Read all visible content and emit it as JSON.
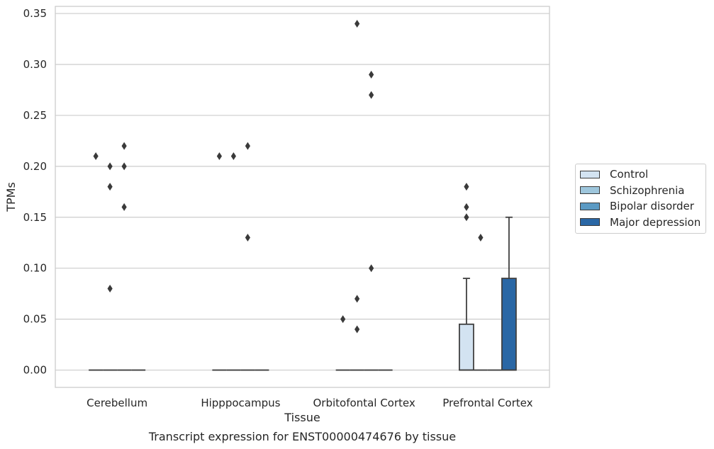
{
  "chart_data": {
    "type": "box",
    "caption": "Transcript expression for ENST00000474676 by tissue",
    "xlabel": "Tissue",
    "ylabel": "TPMs",
    "ylim": [
      -0.017,
      0.357
    ],
    "yticks": [
      "0.00",
      "0.05",
      "0.10",
      "0.15",
      "0.20",
      "0.25",
      "0.30",
      "0.35"
    ],
    "categories": [
      "Cerebellum",
      "Hipppocampus",
      "Orbitofontal Cortex",
      "Prefrontal Cortex"
    ],
    "grid": "horizontal",
    "legend_position": "outside-right",
    "series": [
      {
        "name": "Control",
        "color": "#d3e3f1",
        "boxes": [
          {
            "q1": 0,
            "median": 0,
            "q3": 0,
            "whisker_low": 0,
            "whisker_high": 0,
            "outliers": [
              0.21
            ]
          },
          {
            "q1": 0,
            "median": 0,
            "q3": 0,
            "whisker_low": 0,
            "whisker_high": 0,
            "outliers": [
              0.21
            ]
          },
          {
            "q1": 0,
            "median": 0,
            "q3": 0,
            "whisker_low": 0,
            "whisker_high": 0,
            "outliers": [
              0.05
            ]
          },
          {
            "q1": 0,
            "median": 0,
            "q3": 0.045,
            "whisker_low": 0,
            "whisker_high": 0.09,
            "outliers": [
              0.18,
              0.16,
              0.15
            ]
          }
        ]
      },
      {
        "name": "Schizophrenia",
        "color": "#9ec6dc",
        "boxes": [
          {
            "q1": 0,
            "median": 0,
            "q3": 0,
            "whisker_low": 0,
            "whisker_high": 0,
            "outliers": [
              0.2,
              0.18,
              0.08
            ]
          },
          {
            "q1": 0,
            "median": 0,
            "q3": 0,
            "whisker_low": 0,
            "whisker_high": 0,
            "outliers": [
              0.21
            ]
          },
          {
            "q1": 0,
            "median": 0,
            "q3": 0,
            "whisker_low": 0,
            "whisker_high": 0,
            "outliers": [
              0.34,
              0.07,
              0.04
            ]
          },
          {
            "q1": 0,
            "median": 0,
            "q3": 0,
            "whisker_low": 0,
            "whisker_high": 0,
            "outliers": [
              0.13
            ]
          }
        ]
      },
      {
        "name": "Bipolar disorder",
        "color": "#5b9ac3",
        "boxes": [
          {
            "q1": 0,
            "median": 0,
            "q3": 0,
            "whisker_low": 0,
            "whisker_high": 0,
            "outliers": [
              0.22,
              0.2,
              0.16
            ]
          },
          {
            "q1": 0,
            "median": 0,
            "q3": 0,
            "whisker_low": 0,
            "whisker_high": 0,
            "outliers": [
              0.22,
              0.13
            ]
          },
          {
            "q1": 0,
            "median": 0,
            "q3": 0,
            "whisker_low": 0,
            "whisker_high": 0,
            "outliers": [
              0.29,
              0.27,
              0.1
            ]
          },
          {
            "q1": 0,
            "median": 0,
            "q3": 0,
            "whisker_low": 0,
            "whisker_high": 0,
            "outliers": []
          }
        ]
      },
      {
        "name": "Major depression",
        "color": "#2a67a5",
        "boxes": [
          {
            "q1": 0,
            "median": 0,
            "q3": 0,
            "whisker_low": 0,
            "whisker_high": 0,
            "outliers": []
          },
          {
            "q1": 0,
            "median": 0,
            "q3": 0,
            "whisker_low": 0,
            "whisker_high": 0,
            "outliers": []
          },
          {
            "q1": 0,
            "median": 0,
            "q3": 0,
            "whisker_low": 0,
            "whisker_high": 0,
            "outliers": []
          },
          {
            "q1": 0,
            "median": 0,
            "q3": 0.09,
            "whisker_low": 0,
            "whisker_high": 0.15,
            "outliers": []
          }
        ]
      }
    ]
  }
}
